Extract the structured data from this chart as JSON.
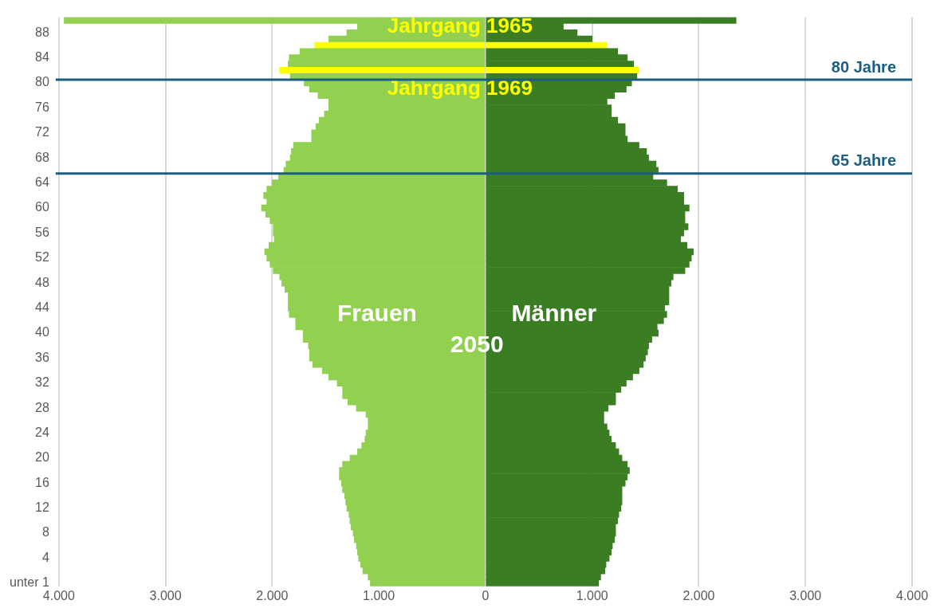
{
  "chart_data": {
    "type": "bar",
    "orientation": "horizontal",
    "stacked": true,
    "categories": [
      null,
      null,
      "88",
      null,
      null,
      null,
      "84",
      null,
      null,
      null,
      "80",
      null,
      null,
      null,
      "76",
      null,
      null,
      null,
      "72",
      null,
      null,
      null,
      "68",
      null,
      null,
      null,
      "64",
      null,
      null,
      null,
      "60",
      null,
      null,
      null,
      "56",
      null,
      null,
      null,
      "52",
      null,
      null,
      null,
      "48",
      null,
      null,
      null,
      "44",
      null,
      null,
      null,
      "40",
      null,
      null,
      null,
      "36",
      null,
      null,
      null,
      "32",
      null,
      null,
      null,
      "28",
      null,
      null,
      null,
      "24",
      null,
      null,
      null,
      "20",
      null,
      null,
      null,
      "16",
      null,
      null,
      null,
      "12",
      null,
      null,
      null,
      "8",
      null,
      null,
      null,
      "4",
      null,
      null,
      null,
      "unter 1"
    ],
    "series": [
      {
        "name": "Frauen",
        "color": "#92d050",
        "colors": [
          null,
          null,
          null,
          null,
          "#ffff00",
          null,
          null,
          null,
          "#ffff00",
          null,
          null,
          null,
          null,
          null,
          null,
          null,
          null,
          null,
          null,
          null,
          null,
          null,
          null,
          null,
          null,
          null,
          null,
          null,
          null,
          null,
          null,
          null,
          null,
          null,
          null,
          null,
          null,
          null,
          null,
          null,
          null,
          null,
          null,
          null,
          null,
          null,
          null,
          null,
          null,
          null,
          null,
          null,
          null,
          null,
          null,
          null,
          null,
          null,
          null,
          null,
          null,
          null,
          null,
          null,
          null,
          null,
          null,
          null,
          null,
          null,
          null,
          null,
          null,
          null,
          null,
          null,
          null,
          null,
          null,
          null,
          null,
          null,
          null,
          null,
          null,
          null,
          null,
          null,
          null,
          null,
          null
        ],
        "values": [
          -3950,
          -1200,
          -1300,
          -1470,
          -1600,
          -1740,
          -1840,
          -1850,
          -1930,
          -1830,
          -1700,
          -1650,
          -1570,
          -1470,
          -1470,
          -1510,
          -1560,
          -1590,
          -1630,
          -1630,
          -1800,
          -1820,
          -1830,
          -1870,
          -1890,
          -1940,
          -2000,
          -2050,
          -2080,
          -2050,
          -2100,
          -2060,
          -2020,
          -1990,
          -1990,
          -1980,
          -2030,
          -2070,
          -2050,
          -2020,
          -1990,
          -1930,
          -1910,
          -1880,
          -1850,
          -1850,
          -1850,
          -1840,
          -1780,
          -1780,
          -1710,
          -1710,
          -1660,
          -1650,
          -1650,
          -1620,
          -1530,
          -1470,
          -1390,
          -1340,
          -1340,
          -1290,
          -1210,
          -1120,
          -1100,
          -1100,
          -1120,
          -1130,
          -1160,
          -1200,
          -1270,
          -1340,
          -1370,
          -1370,
          -1350,
          -1340,
          -1320,
          -1310,
          -1300,
          -1280,
          -1270,
          -1260,
          -1240,
          -1230,
          -1210,
          -1200,
          -1190,
          -1170,
          -1150,
          -1100,
          -1080
        ]
      },
      {
        "name": "Männer",
        "color": "#3b7d23",
        "colors": [
          null,
          null,
          null,
          null,
          "#ffff00",
          null,
          null,
          null,
          "#ffff00",
          null,
          null,
          null,
          null,
          null,
          null,
          null,
          null,
          null,
          null,
          null,
          null,
          null,
          null,
          null,
          null,
          null,
          null,
          null,
          null,
          null,
          null,
          null,
          null,
          null,
          null,
          null,
          null,
          null,
          null,
          null,
          null,
          null,
          null,
          null,
          null,
          null,
          null,
          null,
          null,
          null,
          null,
          null,
          null,
          null,
          null,
          null,
          null,
          null,
          null,
          null,
          null,
          null,
          null,
          null,
          null,
          null,
          null,
          null,
          null,
          null,
          null,
          null,
          null,
          null,
          null,
          null,
          null,
          null,
          null,
          null,
          null,
          null,
          null,
          null,
          null,
          null,
          null,
          null,
          null,
          null,
          null
        ],
        "values": [
          2350,
          730,
          860,
          1000,
          1140,
          1240,
          1330,
          1390,
          1440,
          1420,
          1370,
          1320,
          1210,
          1140,
          1180,
          1180,
          1240,
          1310,
          1310,
          1330,
          1440,
          1510,
          1530,
          1600,
          1620,
          1570,
          1700,
          1800,
          1860,
          1860,
          1910,
          1870,
          1870,
          1900,
          1860,
          1830,
          1890,
          1950,
          1930,
          1910,
          1870,
          1760,
          1740,
          1720,
          1720,
          1720,
          1680,
          1700,
          1670,
          1610,
          1620,
          1560,
          1530,
          1520,
          1500,
          1480,
          1440,
          1380,
          1320,
          1270,
          1220,
          1220,
          1150,
          1110,
          1110,
          1140,
          1160,
          1180,
          1220,
          1250,
          1280,
          1330,
          1350,
          1330,
          1310,
          1280,
          1280,
          1280,
          1270,
          1250,
          1240,
          1220,
          1220,
          1210,
          1190,
          1180,
          1160,
          1130,
          1120,
          1080,
          1060
        ]
      }
    ],
    "xlim": [
      -4000,
      4000
    ],
    "xticks": [
      {
        "value": -4000,
        "label": "4.000"
      },
      {
        "value": -3000,
        "label": "3.000"
      },
      {
        "value": -2000,
        "label": "2.000"
      },
      {
        "value": -1000,
        "label": "1.000"
      },
      0,
      {
        "value": 1000,
        "label": "1.000"
      },
      {
        "value": 2000,
        "label": "2.000"
      },
      {
        "value": 3000,
        "label": "3.000"
      },
      {
        "value": 4000,
        "label": "4.000"
      }
    ],
    "grid": "x",
    "legend": false,
    "annotations": [
      "Jahrgang 1965",
      "Jahrgang 1969",
      "2050",
      "80 Jahre",
      "65 Jahre"
    ]
  }
}
